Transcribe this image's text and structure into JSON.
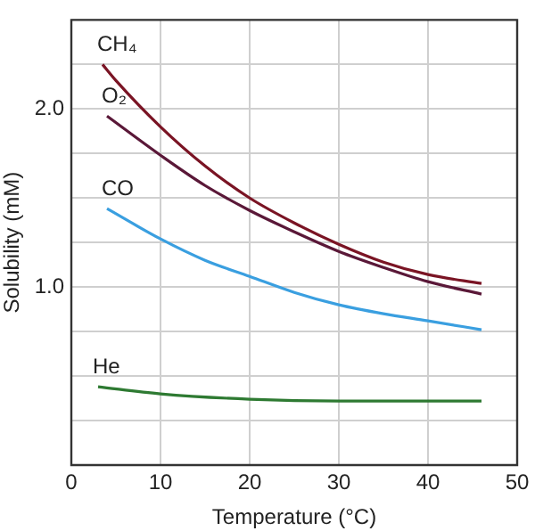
{
  "chart_data": {
    "type": "line",
    "xlabel": "Temperature (°C)",
    "ylabel": "Solubility (mM)",
    "xlim": [
      0,
      50
    ],
    "xticks": [
      0,
      10,
      20,
      30,
      40,
      50
    ],
    "ylim": [
      0,
      2.5
    ],
    "yticks": [
      {
        "value": 0,
        "label": null
      },
      {
        "value": 0.25,
        "label": null
      },
      {
        "value": 0.5,
        "label": null
      },
      {
        "value": 0.75,
        "label": null
      },
      {
        "value": 1,
        "label": "1.0"
      },
      {
        "value": 1.25,
        "label": null
      },
      {
        "value": 1.5,
        "label": null
      },
      {
        "value": 1.75,
        "label": null
      },
      {
        "value": 2,
        "label": "2.0"
      },
      {
        "value": 2.25,
        "label": null
      },
      {
        "value": 2.5,
        "label": null
      }
    ],
    "grid": true,
    "legend": false,
    "marker": "none",
    "line_style": "solid",
    "series": [
      {
        "name": "CH₄",
        "color": "#7a1424",
        "x": [
          3.5,
          5,
          10,
          15,
          20,
          25,
          30,
          35,
          40,
          46
        ],
        "values": [
          2.25,
          2.16,
          1.9,
          1.68,
          1.5,
          1.36,
          1.24,
          1.14,
          1.07,
          1.02
        ]
      },
      {
        "name": "O₂",
        "color": "#5a1838",
        "x": [
          4,
          10,
          15,
          20,
          25,
          30,
          35,
          40,
          46
        ],
        "values": [
          1.96,
          1.74,
          1.57,
          1.43,
          1.31,
          1.2,
          1.11,
          1.03,
          0.96
        ]
      },
      {
        "name": "CO",
        "color": "#3a9fe0",
        "x": [
          4,
          10,
          15,
          20,
          25,
          30,
          35,
          40,
          46
        ],
        "values": [
          1.44,
          1.27,
          1.15,
          1.06,
          0.97,
          0.9,
          0.85,
          0.81,
          0.76
        ]
      },
      {
        "name": "He",
        "color": "#2e7a32",
        "x": [
          3,
          10,
          20,
          30,
          46
        ],
        "values": [
          0.44,
          0.4,
          0.37,
          0.36,
          0.36
        ]
      }
    ]
  }
}
